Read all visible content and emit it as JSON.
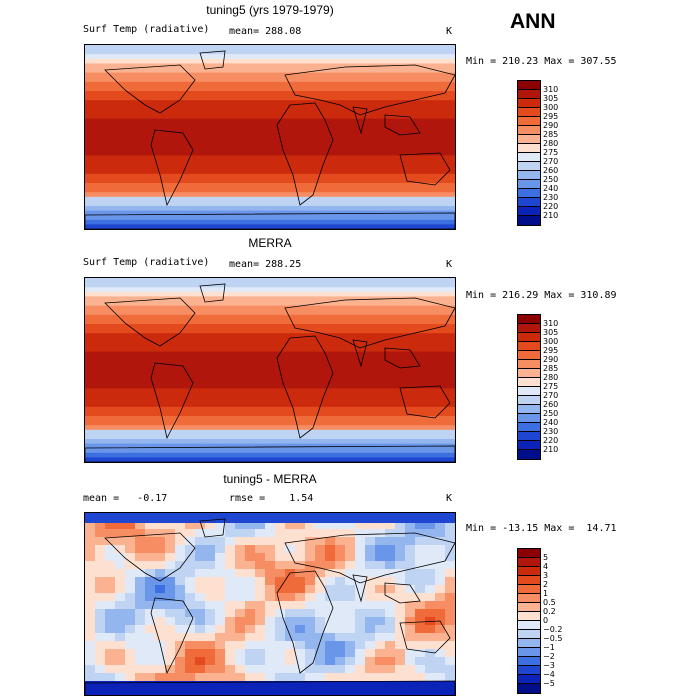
{
  "header": {
    "season": "ANN"
  },
  "panels": [
    {
      "title": "tuning5 (yrs 1979-1979)",
      "left_label": "Surf Temp (radiative)",
      "mid_label": "mean= 288.08",
      "unit": "K",
      "minmax": "Min = 210.23 Max = 307.55",
      "colorbar": {
        "labels": [
          "310",
          "305",
          "300",
          "295",
          "290",
          "285",
          "280",
          "275",
          "270",
          "260",
          "250",
          "240",
          "230",
          "220",
          "210"
        ],
        "colors": [
          "#8b0000",
          "#b0160b",
          "#cc2a0c",
          "#e34a1d",
          "#f06b3a",
          "#f78e63",
          "#fbb290",
          "#fde0cf",
          "#dfe9f7",
          "#bfd3f3",
          "#93b6ef",
          "#6a96ea",
          "#3c6fe0",
          "#1e46d0",
          "#0b23b8",
          "#000e8a"
        ]
      }
    },
    {
      "title": "MERRA",
      "left_label": "Surf Temp (radiative)",
      "mid_label": "mean= 288.25",
      "unit": "K",
      "minmax": "Min = 216.29 Max = 310.89",
      "colorbar": {
        "labels": [
          "310",
          "305",
          "300",
          "295",
          "290",
          "285",
          "280",
          "275",
          "270",
          "260",
          "250",
          "240",
          "230",
          "220",
          "210"
        ],
        "colors": [
          "#8b0000",
          "#b0160b",
          "#cc2a0c",
          "#e34a1d",
          "#f06b3a",
          "#f78e63",
          "#fbb290",
          "#fde0cf",
          "#dfe9f7",
          "#bfd3f3",
          "#93b6ef",
          "#6a96ea",
          "#3c6fe0",
          "#1e46d0",
          "#0b23b8",
          "#000e8a"
        ]
      }
    },
    {
      "title": "tuning5 - MERRA",
      "left_label": "mean =   -0.17",
      "mid_label": "rmse =    1.54",
      "unit": "K",
      "minmax": "Min = -13.15 Max =  14.71",
      "colorbar": {
        "labels": [
          "5",
          "4",
          "3",
          "2",
          "1",
          "0.5",
          "0.2",
          "0",
          "−0.2",
          "−0.5",
          "−1",
          "−2",
          "−3",
          "−4",
          "−5"
        ],
        "colors": [
          "#8b0000",
          "#b0160b",
          "#cc2a0c",
          "#e34a1d",
          "#f06b3a",
          "#f78e63",
          "#fbb290",
          "#fde0cf",
          "#dfe9f7",
          "#bfd3f3",
          "#93b6ef",
          "#6a96ea",
          "#3c6fe0",
          "#1e46d0",
          "#0b23b8",
          "#000e8a"
        ]
      }
    }
  ]
}
